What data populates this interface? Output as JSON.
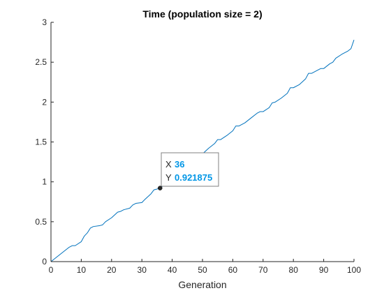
{
  "chart_data": {
    "type": "line",
    "title": "Time (population size = 2)",
    "xlabel": "Generation",
    "ylabel": "",
    "xlim": [
      0,
      100
    ],
    "ylim": [
      0,
      3
    ],
    "xticks": [
      "0",
      "10",
      "20",
      "30",
      "40",
      "50",
      "60",
      "70",
      "80",
      "90",
      "100"
    ],
    "yticks": [
      "0",
      "0.5",
      "1",
      "1.5",
      "2",
      "2.5",
      "3"
    ],
    "grid": false,
    "legend": "none",
    "series": [
      {
        "color": "#0072BD",
        "x": [
          0,
          2,
          4,
          6,
          7,
          8,
          10,
          11,
          12,
          13,
          14,
          16,
          17,
          18,
          20,
          22,
          23,
          24,
          26,
          27,
          28,
          30,
          31,
          33,
          34,
          35,
          36,
          38,
          40,
          41,
          42,
          44,
          46,
          48,
          50,
          52,
          54,
          55,
          56,
          58,
          60,
          61,
          62,
          64,
          66,
          68,
          69,
          70,
          72,
          73,
          74,
          76,
          78,
          79,
          80,
          82,
          84,
          85,
          86,
          88,
          89,
          90,
          92,
          93,
          94,
          96,
          98,
          99,
          100
        ],
        "y": [
          0,
          0.06,
          0.12,
          0.18,
          0.2,
          0.2,
          0.25,
          0.32,
          0.36,
          0.42,
          0.44,
          0.45,
          0.46,
          0.5,
          0.55,
          0.62,
          0.63,
          0.65,
          0.67,
          0.71,
          0.73,
          0.74,
          0.78,
          0.85,
          0.9,
          0.91,
          0.921875,
          0.98,
          1.06,
          1.12,
          1.15,
          1.18,
          1.26,
          1.29,
          1.35,
          1.42,
          1.48,
          1.53,
          1.53,
          1.58,
          1.64,
          1.7,
          1.7,
          1.74,
          1.8,
          1.86,
          1.88,
          1.88,
          1.93,
          1.99,
          2.0,
          2.05,
          2.11,
          2.18,
          2.18,
          2.22,
          2.29,
          2.36,
          2.36,
          2.4,
          2.42,
          2.42,
          2.48,
          2.5,
          2.55,
          2.6,
          2.64,
          2.67,
          2.78
        ]
      }
    ],
    "datatip": {
      "x_key": "X",
      "y_key": "Y",
      "x_value": "36",
      "y_value": "0.921875",
      "x": 36,
      "y": 0.921875,
      "value_color": "#0096E6"
    }
  }
}
